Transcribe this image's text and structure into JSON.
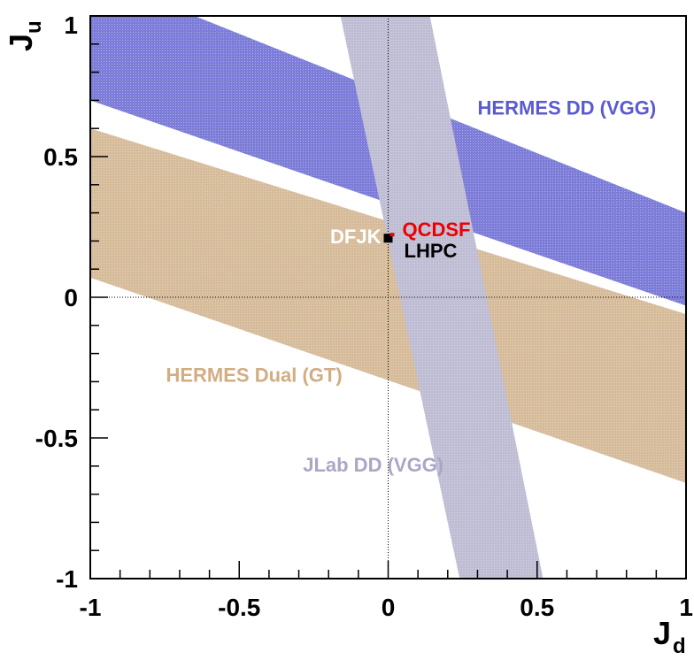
{
  "chart_data": {
    "type": "area",
    "xlabel": "J",
    "xlabel_sub": "d",
    "ylabel": "J",
    "ylabel_sub": "u",
    "xlim": [
      -1,
      1
    ],
    "ylim": [
      -1,
      1
    ],
    "x_ticks": [
      {
        "value": -1,
        "label": "-1"
      },
      {
        "value": -0.5,
        "label": "-0.5"
      },
      {
        "value": 0,
        "label": "0"
      },
      {
        "value": 0.5,
        "label": "0.5"
      },
      {
        "value": 1,
        "label": "1"
      }
    ],
    "y_ticks": [
      {
        "value": -1,
        "label": "-1"
      },
      {
        "value": -0.5,
        "label": "-0.5"
      },
      {
        "value": 0,
        "label": "0"
      },
      {
        "value": 0.5,
        "label": "0.5"
      },
      {
        "value": 1,
        "label": "1"
      }
    ],
    "zero_lines": true,
    "bands": [
      {
        "name": "HERMES Dual (GT)",
        "color": "#c8a57a",
        "label_color": "#d2ad82",
        "polygon": [
          [
            -1,
            0.6
          ],
          [
            1,
            -0.06
          ],
          [
            1,
            -0.66
          ],
          [
            -1,
            0.07
          ]
        ],
        "label_at": [
          -0.45,
          -0.3
        ]
      },
      {
        "name": "HERMES DD (VGG)",
        "color": "#5252cc",
        "label_color": "#5a5ad2",
        "polygon": [
          [
            -1,
            1
          ],
          [
            -0.65,
            1
          ],
          [
            1,
            0.3
          ],
          [
            1,
            -0.03
          ],
          [
            -1,
            0.7
          ]
        ],
        "label_at": [
          0.6,
          0.65
        ]
      },
      {
        "name": "JLab DD (VGG)",
        "color": "#a9a7c6",
        "label_color": "#a9a7c6",
        "polygon": [
          [
            -0.16,
            1
          ],
          [
            0.14,
            1
          ],
          [
            0.52,
            -1
          ],
          [
            0.24,
            -1
          ]
        ],
        "label_at": [
          -0.05,
          -0.62
        ]
      }
    ],
    "points": [
      {
        "name": "DFJK",
        "x": 0.0,
        "y": 0.21,
        "label_color": "#ffffff",
        "label_anchor": "end"
      },
      {
        "name": "QCDSF",
        "x": 0.01,
        "y": 0.225,
        "label_color": "#ee0000",
        "label_anchor": "start"
      },
      {
        "name": "LHPC",
        "x": 0.01,
        "y": 0.205,
        "label_color": "#000000",
        "label_anchor": "start"
      }
    ]
  }
}
